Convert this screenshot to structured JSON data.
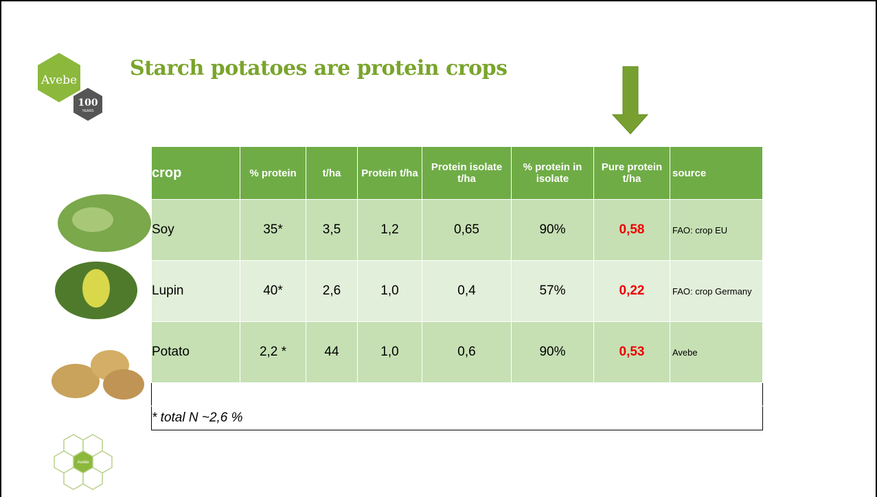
{
  "logo": {
    "name": "Avebe",
    "badge": "100",
    "badge_sub": "YEARS"
  },
  "title": "Starch potatoes are protein crops",
  "table": {
    "header": [
      "crop",
      "% protein",
      "t/ha",
      "Protein t/ha",
      "Protein isolate t/ha",
      "% protein in isolate",
      "Pure protein t/ha",
      "source"
    ],
    "rows": [
      [
        "Soy",
        "35*",
        "3,5",
        "1,2",
        "0,65",
        "90%",
        "0,58",
        "FAO:  crop EU"
      ],
      [
        "Lupin",
        "40*",
        "2,6",
        "1,0",
        "0,4",
        "57%",
        "0,22",
        "FAO: crop Germany"
      ],
      [
        "Potato",
        "2,2 *",
        "44",
        "1,0",
        "0,6",
        "90%",
        "0,53",
        "Avebe"
      ]
    ],
    "footnote": "* total N ~2,6 %"
  },
  "footer_logo": {
    "center": "Avebe"
  }
}
